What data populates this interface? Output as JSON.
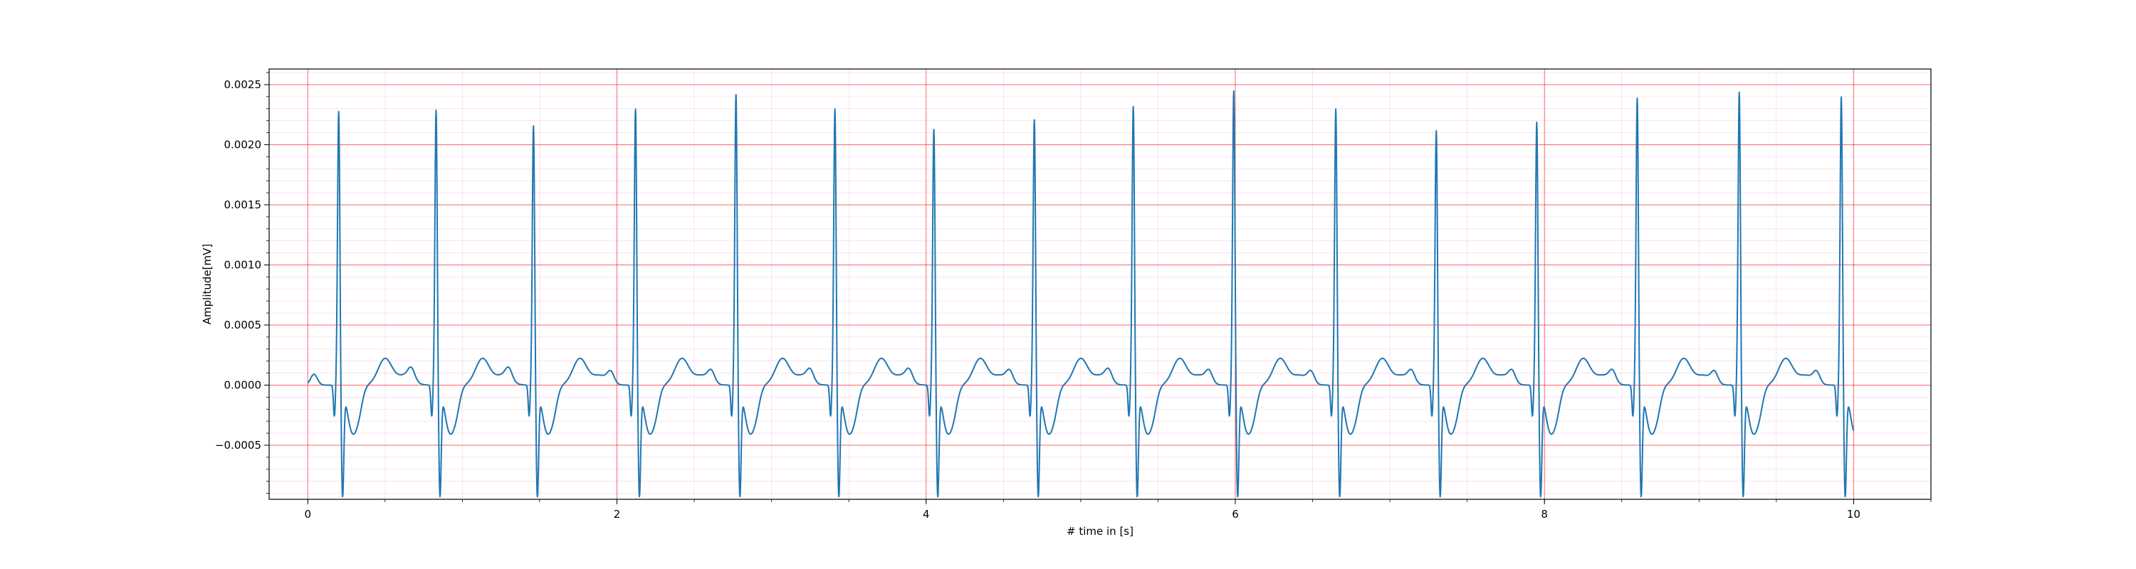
{
  "chart_data": {
    "type": "line",
    "title": "",
    "xlabel": "# time in [s]",
    "ylabel": "Amplitude[mV]",
    "xlim": [
      -0.25,
      10.5
    ],
    "ylim": [
      -0.00095,
      0.00263
    ],
    "xticks": [
      0,
      2,
      4,
      6,
      8,
      10
    ],
    "xtick_labels": [
      "0",
      "2",
      "4",
      "6",
      "8",
      "10"
    ],
    "yticks": [
      -0.0005,
      0.0,
      0.0005,
      0.001,
      0.0015,
      0.002,
      0.0025
    ],
    "ytick_labels": [
      "−0.0005",
      "0.0000",
      "0.0005",
      "0.0010",
      "0.0015",
      "0.0020",
      "0.0025"
    ],
    "grid": true,
    "grid_major_color": "#ff0000",
    "grid_minor_color": "#ff69b4",
    "line_color": "#1f77b4",
    "series": [
      {
        "name": "",
        "beats": [
          {
            "t": 0.2,
            "peak": 0.00229
          },
          {
            "t": 0.83,
            "peak": 0.0023
          },
          {
            "t": 1.46,
            "peak": 0.00217
          },
          {
            "t": 2.12,
            "peak": 0.00231
          },
          {
            "t": 2.77,
            "peak": 0.00243
          },
          {
            "t": 3.41,
            "peak": 0.00231
          },
          {
            "t": 4.05,
            "peak": 0.00214
          },
          {
            "t": 4.7,
            "peak": 0.00222
          },
          {
            "t": 5.34,
            "peak": 0.00233
          },
          {
            "t": 5.99,
            "peak": 0.00246
          },
          {
            "t": 6.65,
            "peak": 0.00231
          },
          {
            "t": 7.3,
            "peak": 0.00213
          },
          {
            "t": 7.95,
            "peak": 0.0022
          },
          {
            "t": 8.6,
            "peak": 0.0024
          },
          {
            "t": 9.26,
            "peak": 0.00245
          },
          {
            "t": 9.92,
            "peak": 0.00241
          }
        ],
        "s_trough": -0.00074,
        "baseline": 0.0,
        "t_wave_peak": 0.00022,
        "st_segment_min": -0.00045,
        "t_start": 0.0,
        "t_end": 10.0
      }
    ]
  }
}
